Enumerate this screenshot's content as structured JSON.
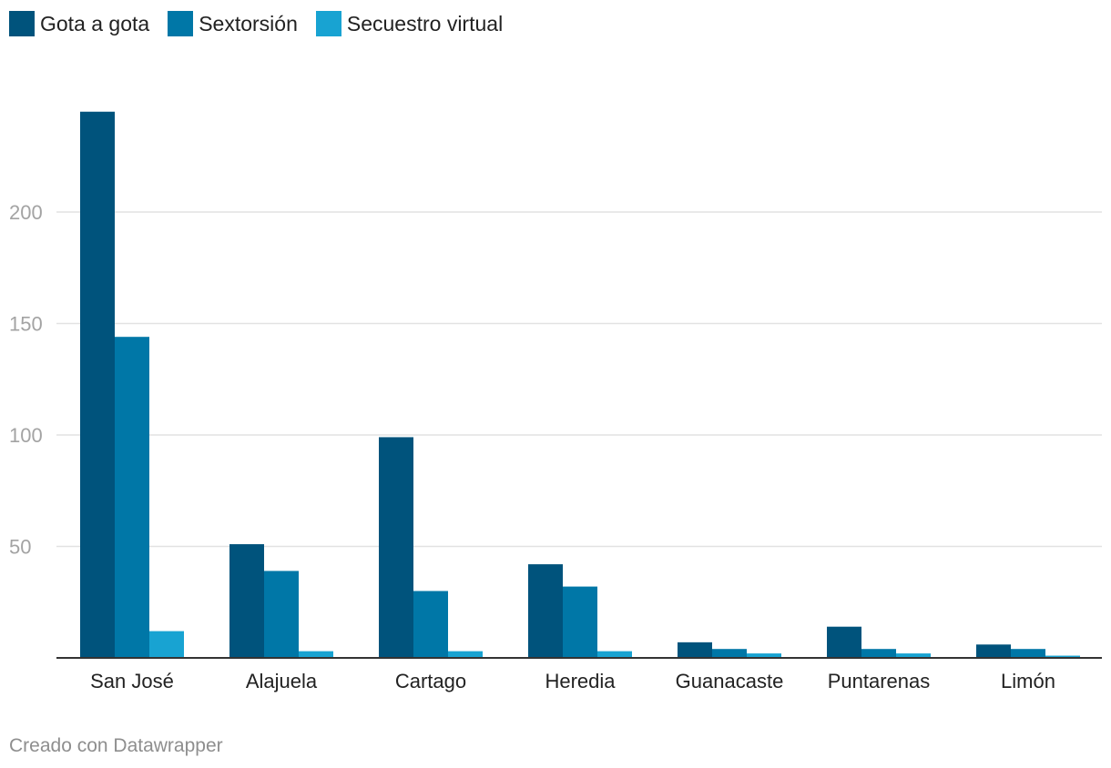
{
  "chart_data": {
    "type": "bar",
    "categories": [
      "San José",
      "Alajuela",
      "Cartago",
      "Heredia",
      "Guanacaste",
      "Puntarenas",
      "Limón"
    ],
    "series": [
      {
        "name": "Gota a gota",
        "color": "#00537c",
        "values": [
          245,
          51,
          99,
          42,
          7,
          14,
          6
        ]
      },
      {
        "name": "Sextorsión",
        "color": "#0077a7",
        "values": [
          144,
          39,
          30,
          32,
          4,
          4,
          4
        ]
      },
      {
        "name": "Secuestro virtual",
        "color": "#18a3d2",
        "values": [
          12,
          3,
          3,
          3,
          2,
          2,
          1
        ]
      }
    ],
    "yticks": [
      50,
      100,
      150,
      200
    ],
    "ylim": [
      0,
      250
    ],
    "grid": true,
    "legend": "top-left"
  },
  "footer": {
    "credit": "Creado con Datawrapper"
  }
}
